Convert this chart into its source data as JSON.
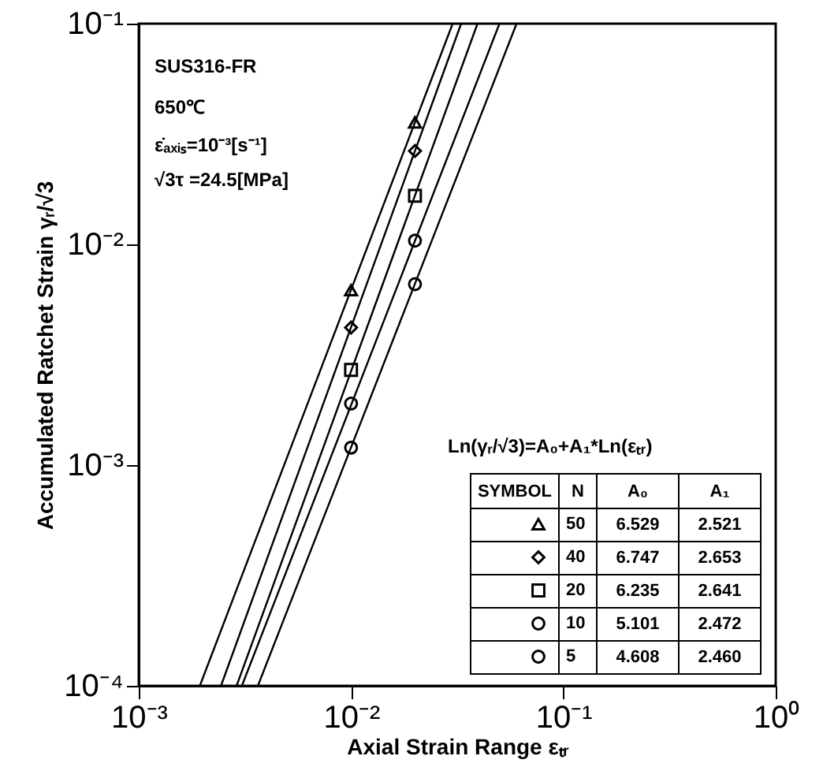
{
  "chart_data": {
    "type": "scatter",
    "xlabel": "Axial Strain Range εₜᵣ",
    "ylabel": "Accumulated Ratchet Strain γᵣ/√3",
    "log": "xy",
    "xlim": [
      0.001,
      1
    ],
    "ylim": [
      0.0001,
      0.1
    ],
    "xticks": [
      {
        "value": 0.001,
        "label": "10⁻³"
      },
      {
        "value": 0.01,
        "label": "10⁻²"
      },
      {
        "value": 0.1,
        "label": "10⁻¹"
      },
      {
        "value": 1,
        "label": "10⁰"
      }
    ],
    "yticks": [
      {
        "value": 0.0001,
        "label": "10⁻⁴"
      },
      {
        "value": 0.001,
        "label": "10⁻³"
      },
      {
        "value": 0.01,
        "label": "10⁻²"
      },
      {
        "value": 0.1,
        "label": "10⁻¹"
      }
    ],
    "legend": "bottom right",
    "annotations": [
      "SUS316-FR",
      "650℃",
      "ε̇ₐₓᵢₛ=10⁻³[s⁻¹]",
      "√3τ =24.5[MPa]",
      "Ln(γᵣ/√3)=A₀+A₁*Ln(εₜᵣ)",
      "SYMBOL",
      "N",
      "A₀",
      "A₁",
      "6.529",
      "2.521",
      "6.747",
      "2.653",
      "6.235",
      "2.641",
      "5.101",
      "2.472",
      "4.608",
      "2.460"
    ],
    "series": [
      {
        "name": "50",
        "color": "#000000",
        "marker": "triangle",
        "x": [
          0.01,
          0.02
        ],
        "values": [
          0.0062,
          0.0357
        ]
      },
      {
        "name": "40",
        "color": "#000000",
        "marker": "diamond",
        "x": [
          0.01,
          0.02
        ],
        "values": [
          0.0042,
          0.0265
        ]
      },
      {
        "name": "20",
        "color": "#000000",
        "marker": "square",
        "x": [
          0.01,
          0.02
        ],
        "values": [
          0.0027,
          0.0166
        ]
      },
      {
        "name": "10",
        "color": "#000000",
        "marker": "circle",
        "x": [
          0.01,
          0.02
        ],
        "values": [
          0.0019,
          0.0104
        ]
      },
      {
        "name": "5",
        "color": "#000000",
        "marker": "circle",
        "x": [
          0.01,
          0.02
        ],
        "values": [
          0.0012,
          0.0066
        ]
      },
      {
        "type": "line",
        "color": "#000000",
        "x": [
          0.00194,
          0.0301
        ],
        "values": [
          0.0001,
          0.1
        ]
      },
      {
        "type": "line",
        "color": "#000000",
        "x": [
          0.00244,
          0.033
        ],
        "values": [
          0.0001,
          0.1
        ]
      },
      {
        "type": "line",
        "color": "#000000",
        "x": [
          0.00289,
          0.0394
        ],
        "values": [
          0.0001,
          0.1
        ]
      },
      {
        "type": "line",
        "color": "#000000",
        "x": [
          0.00306,
          0.05
        ],
        "values": [
          0.0001,
          0.1
        ]
      },
      {
        "type": "line",
        "color": "#000000",
        "x": [
          0.00364,
          0.0602
        ],
        "values": [
          0.0001,
          0.1
        ]
      }
    ]
  }
}
